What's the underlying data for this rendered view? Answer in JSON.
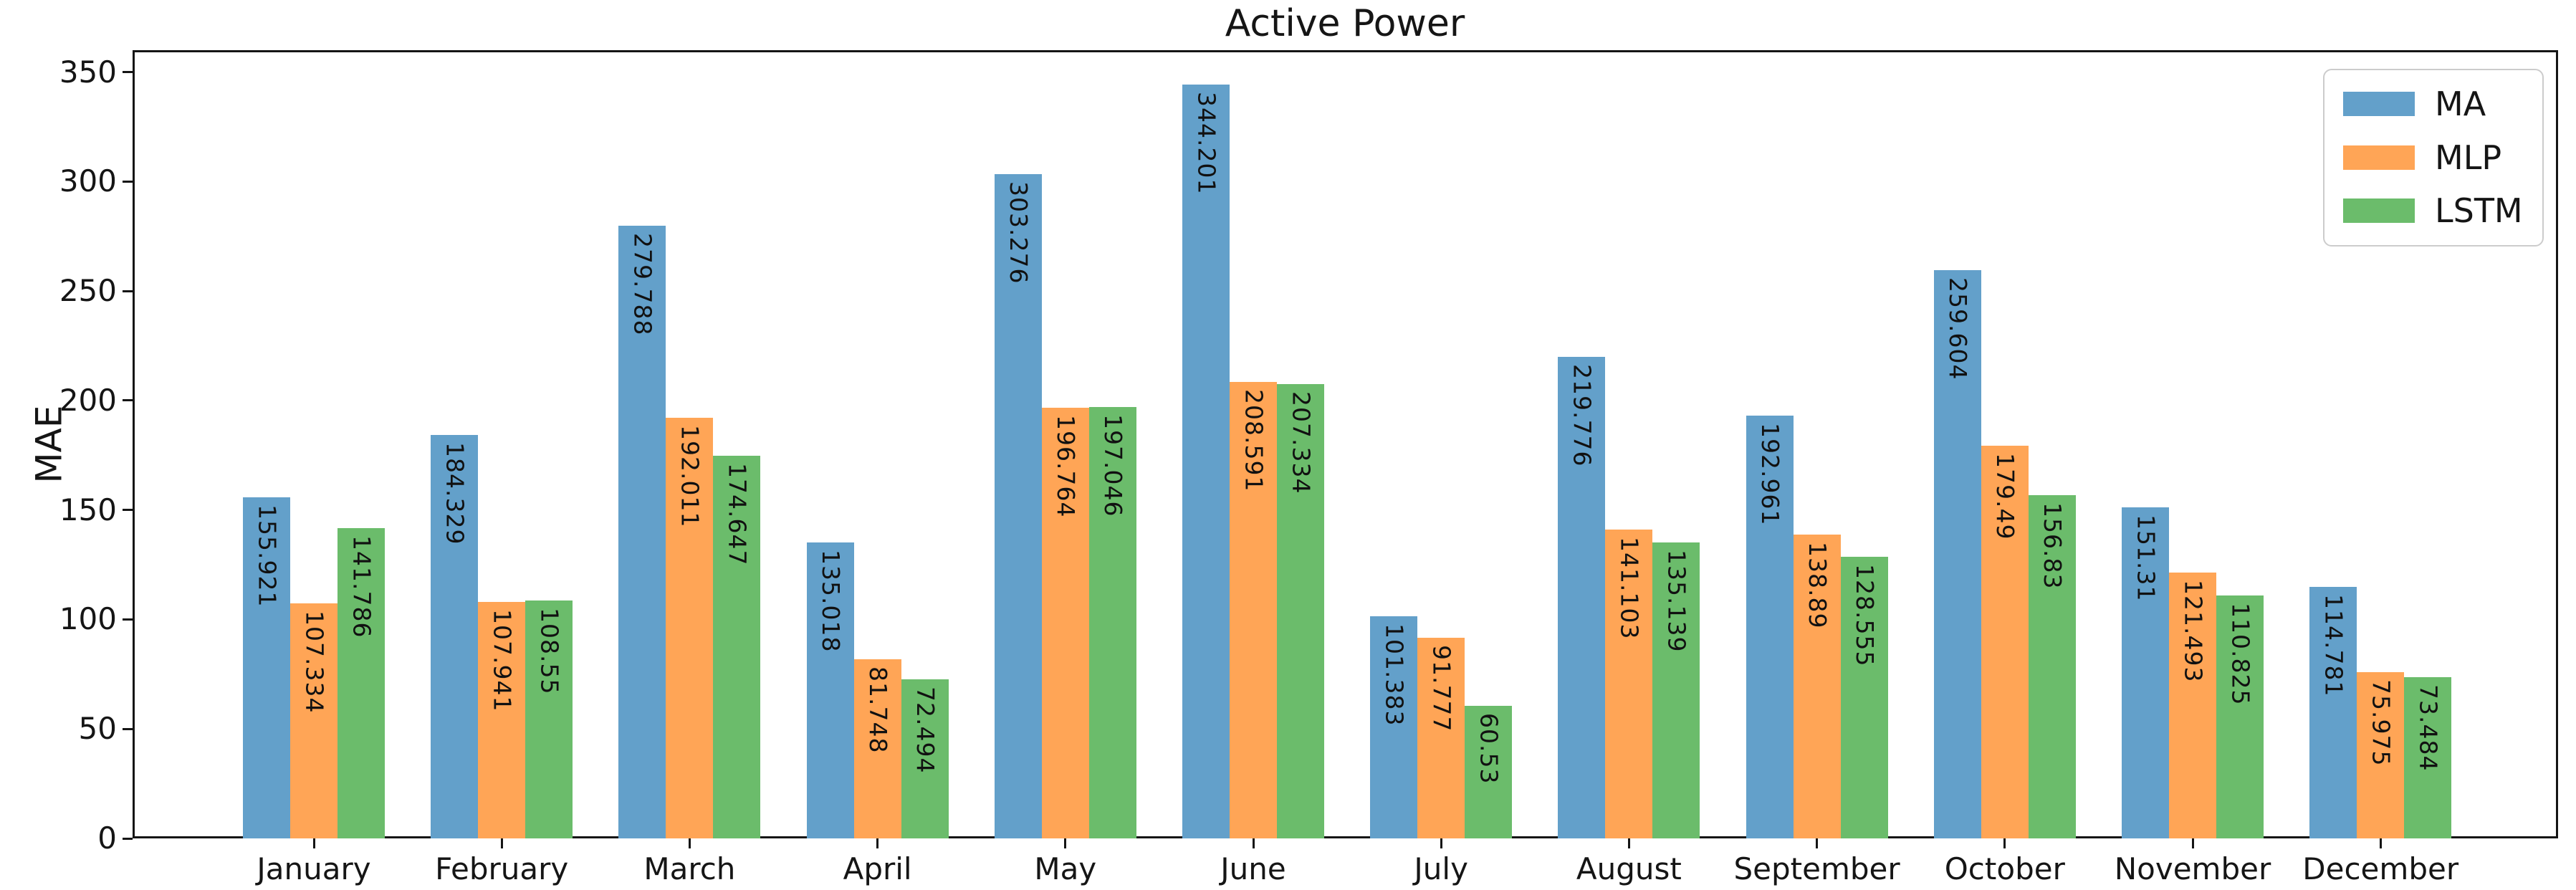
{
  "chart_data": {
    "type": "bar",
    "title": "Active Power",
    "xlabel": "",
    "ylabel": "MAE",
    "ylim": [
      0,
      360
    ],
    "yticks": [
      0,
      50,
      100,
      150,
      200,
      250,
      300,
      350
    ],
    "grid": false,
    "legend_position": "upper right",
    "bar_value_labels_rotation": 90,
    "categories": [
      "January",
      "February",
      "March",
      "April",
      "May",
      "June",
      "July",
      "August",
      "September",
      "October",
      "November",
      "December"
    ],
    "series": [
      {
        "name": "MA",
        "color": "#63A0CA",
        "values": [
          155.921,
          184.329,
          279.788,
          135.018,
          303.276,
          344.201,
          101.383,
          219.776,
          192.961,
          259.604,
          151.31,
          114.781
        ]
      },
      {
        "name": "MLP",
        "color": "#FFA556",
        "values": [
          107.334,
          107.941,
          192.011,
          81.748,
          196.764,
          208.591,
          91.777,
          141.103,
          138.89,
          179.49,
          121.493,
          75.975
        ]
      },
      {
        "name": "LSTM",
        "color": "#6BBC6B",
        "values": [
          141.786,
          108.55,
          174.647,
          72.494,
          197.046,
          207.334,
          60.53,
          135.139,
          128.555,
          156.83,
          110.825,
          73.484
        ]
      }
    ],
    "spine_color": "#151515",
    "text_color": "#151515"
  }
}
